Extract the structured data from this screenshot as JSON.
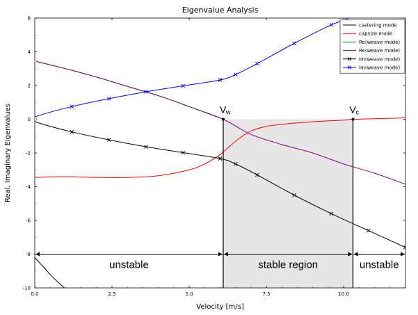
{
  "chart_data": {
    "type": "line",
    "title": "Eigenvalue Analysis",
    "xlabel": "Velocity [m/s]",
    "ylabel": "Real, Imaginary Eigenvalues",
    "xlim": [
      0,
      12
    ],
    "ylim": [
      -10,
      6
    ],
    "x_ticks": [
      "0.0",
      "2.5",
      "5.0",
      "7.5",
      "10.0"
    ],
    "x_tick_values": [
      0,
      2.5,
      5,
      7.5,
      10
    ],
    "y_ticks": [
      "-10",
      "-8",
      "-6",
      "-4",
      "-2",
      "0",
      "2",
      "4",
      "6"
    ],
    "y_tick_values": [
      -10,
      -8,
      -6,
      -4,
      -2,
      0,
      2,
      4,
      6
    ],
    "grid": false,
    "legend_position": "top-right",
    "series": [
      {
        "name": "castering mode",
        "color": "#000000",
        "marker": "none",
        "x": [
          0,
          0.3,
          0.6,
          0.9,
          1.0
        ],
        "y": [
          -8.2,
          -8.8,
          -9.4,
          -9.9,
          -10.1
        ]
      },
      {
        "name": "capsize mode",
        "color": "#ff0000",
        "marker": "none",
        "x": [
          0,
          1,
          2,
          3,
          4,
          5,
          5.5,
          6,
          6.5,
          7,
          7.5,
          8,
          9,
          10,
          10.3,
          11,
          12
        ],
        "y": [
          -3.45,
          -3.4,
          -3.45,
          -3.45,
          -3.35,
          -3.0,
          -2.65,
          -2.1,
          -1.3,
          -0.7,
          -0.42,
          -0.3,
          -0.15,
          -0.05,
          0,
          0.03,
          0.08
        ]
      },
      {
        "name": "Re(weave mode)",
        "color": "#008000",
        "marker": "none",
        "x": [
          0,
          1,
          2,
          3,
          4,
          5,
          6.1
        ],
        "y": [
          3.45,
          3.0,
          2.5,
          1.95,
          1.4,
          0.75,
          0
        ]
      },
      {
        "name": "Re(weave mode)",
        "color": "#800080",
        "marker": "none",
        "x": [
          0,
          1,
          2,
          3,
          4,
          5,
          6.1,
          7,
          8,
          9,
          10,
          11,
          12
        ],
        "y": [
          3.45,
          3.0,
          2.5,
          1.95,
          1.4,
          0.75,
          0,
          -0.9,
          -1.5,
          -2.0,
          -2.65,
          -3.2,
          -3.85
        ]
      },
      {
        "name": "Im(weave mode)",
        "color": "#000000",
        "marker": "x",
        "x": [
          0,
          0.1,
          1.2,
          2.4,
          3.6,
          4.8,
          6.0,
          6.5,
          7.2,
          8.4,
          9.6,
          10.8,
          12
        ],
        "y": [
          0,
          -0.2,
          -0.75,
          -1.22,
          -1.63,
          -1.98,
          -2.33,
          -2.65,
          -3.3,
          -4.5,
          -5.6,
          -6.6,
          -7.6
        ]
      },
      {
        "name": "Im(weave mode)",
        "color": "#0000ff",
        "marker": "x",
        "x": [
          0,
          0.1,
          1.2,
          2.4,
          3.6,
          4.8,
          6.0,
          6.5,
          7.2,
          8.4,
          9.6,
          10.1
        ],
        "y": [
          0,
          0.2,
          0.75,
          1.22,
          1.63,
          1.98,
          2.33,
          2.65,
          3.3,
          4.5,
          5.6,
          5.9
        ]
      }
    ],
    "annotations": {
      "v_w": {
        "label": "V",
        "subscript": "w",
        "x": 6.1
      },
      "v_c": {
        "label": "V",
        "subscript": "c",
        "x": 10.3
      },
      "regions": [
        {
          "label": "unstable",
          "x_from": 0,
          "x_to": 6.1,
          "y": -8
        },
        {
          "label": "stable region",
          "x_from": 6.1,
          "x_to": 10.3,
          "y": -8
        },
        {
          "label": "unstable",
          "x_from": 10.3,
          "x_to": 12,
          "y": -8
        }
      ],
      "shaded_region": {
        "x_from": 6.1,
        "x_to": 10.3,
        "y_from": -10,
        "y_to": 0,
        "color": "#e6e6e6"
      }
    }
  }
}
